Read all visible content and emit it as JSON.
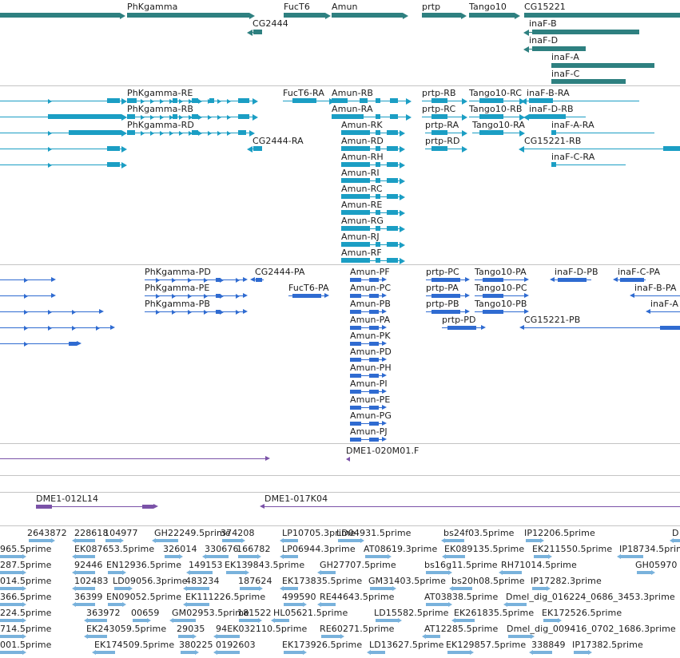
{
  "colors": {
    "gene": "#2e8080",
    "transcript": "#1b9ec4",
    "protein": "#2f6bd1",
    "clone": "#7b52a8",
    "est": "#79b2dc",
    "separator": "#c4c4c4"
  },
  "tracks": {
    "genes": {
      "items": [
        {
          "label": "PhKgamma"
        },
        {
          "label": "FucT6"
        },
        {
          "label": "Amun"
        },
        {
          "label": "prtp"
        },
        {
          "label": "Tango10"
        },
        {
          "label": "CG15221"
        },
        {
          "label": "CG2444"
        },
        {
          "label": "inaF-B"
        },
        {
          "label": "inaF-D"
        },
        {
          "label": "inaF-A"
        },
        {
          "label": "inaF-C"
        }
      ]
    },
    "transcripts": {
      "items": [
        {
          "label": "PhKgamma-RE"
        },
        {
          "label": "PhKgamma-RB"
        },
        {
          "label": "PhKgamma-RD"
        },
        {
          "label": "FucT6-RA"
        },
        {
          "label": "Amun-RB"
        },
        {
          "label": "Amun-RA"
        },
        {
          "label": "Amun-RK"
        },
        {
          "label": "Amun-RD"
        },
        {
          "label": "Amun-RH"
        },
        {
          "label": "Amun-RI"
        },
        {
          "label": "Amun-RC"
        },
        {
          "label": "Amun-RE"
        },
        {
          "label": "Amun-RG"
        },
        {
          "label": "Amun-RJ"
        },
        {
          "label": "Amun-RF"
        },
        {
          "label": "prtp-RB"
        },
        {
          "label": "prtp-RC"
        },
        {
          "label": "prtp-RA"
        },
        {
          "label": "prtp-RD"
        },
        {
          "label": "Tango10-RC"
        },
        {
          "label": "Tango10-RB"
        },
        {
          "label": "Tango10-RA"
        },
        {
          "label": "inaF-B-RA"
        },
        {
          "label": "inaF-D-RB"
        },
        {
          "label": "inaF-A-RA"
        },
        {
          "label": "CG15221-RB"
        },
        {
          "label": "inaF-C-RA"
        },
        {
          "label": "CG2444-RA"
        }
      ]
    },
    "proteins": {
      "items": [
        {
          "label": "PhKgamma-PD"
        },
        {
          "label": "PhKgamma-PE"
        },
        {
          "label": "PhKgamma-PB"
        },
        {
          "label": "CG2444-PA"
        },
        {
          "label": "FucT6-PA"
        },
        {
          "label": "Amun-PF"
        },
        {
          "label": "Amun-PC"
        },
        {
          "label": "Amun-PB"
        },
        {
          "label": "Amun-PA"
        },
        {
          "label": "Amun-PK"
        },
        {
          "label": "Amun-PD"
        },
        {
          "label": "Amun-PH"
        },
        {
          "label": "Amun-PI"
        },
        {
          "label": "Amun-PE"
        },
        {
          "label": "Amun-PG"
        },
        {
          "label": "Amun-PJ"
        },
        {
          "label": "prtp-PC"
        },
        {
          "label": "prtp-PA"
        },
        {
          "label": "prtp-PB"
        },
        {
          "label": "prtp-PD"
        },
        {
          "label": "Tango10-PA"
        },
        {
          "label": "Tango10-PC"
        },
        {
          "label": "Tango10-PB"
        },
        {
          "label": "inaF-D-PB"
        },
        {
          "label": "inaF-C-PA"
        },
        {
          "label": "inaF-B-PA"
        },
        {
          "label": "inaF-A"
        },
        {
          "label": "CG15221-PB"
        }
      ]
    },
    "clones_a": {
      "items": [
        {
          "label": "DME1-020M01.F"
        }
      ]
    },
    "clones_b": {
      "items": [
        {
          "label": "DME1-012L14"
        },
        {
          "label": "DME1-017K04"
        }
      ]
    },
    "ests": {
      "items": [
        {
          "label": "2643872"
        },
        {
          "label": "228618"
        },
        {
          "label": "104977"
        },
        {
          "label": "GH22249.5prime"
        },
        {
          "label": "374208"
        },
        {
          "label": "LP10705.3prime"
        },
        {
          "label": "LD04931.5prime"
        },
        {
          "label": "bs24f03.5prime"
        },
        {
          "label": "IP12206.5prime"
        },
        {
          "label": "D"
        },
        {
          "label": "965.5prime"
        },
        {
          "label": "EK087653.5prime"
        },
        {
          "label": "326014"
        },
        {
          "label": "330676"
        },
        {
          "label": "166782"
        },
        {
          "label": "LP06944.3prime"
        },
        {
          "label": "AT08619.3prime"
        },
        {
          "label": "EK089135.5prime"
        },
        {
          "label": "EK211550.5prime"
        },
        {
          "label": "IP18734.5prime"
        },
        {
          "label": "287.5prime"
        },
        {
          "label": "92446"
        },
        {
          "label": "EN12936.5prime"
        },
        {
          "label": "149153"
        },
        {
          "label": "EK139843.5prime"
        },
        {
          "label": "GH27707.5prime"
        },
        {
          "label": "bs16g11.5prime"
        },
        {
          "label": "RH71014.5prime"
        },
        {
          "label": "GH05970"
        },
        {
          "label": "014.5prime"
        },
        {
          "label": "102483"
        },
        {
          "label": "LD09056.3prime"
        },
        {
          "label": "483234"
        },
        {
          "label": "187624"
        },
        {
          "label": "EK173835.5prime"
        },
        {
          "label": "GM31403.5prime"
        },
        {
          "label": "bs20h08.5prime"
        },
        {
          "label": "IP17282.3prime"
        },
        {
          "label": "366.5prime"
        },
        {
          "label": "36399"
        },
        {
          "label": "EN09052.5prime"
        },
        {
          "label": "EK111226.5prime"
        },
        {
          "label": "499590"
        },
        {
          "label": "RE44643.5prime"
        },
        {
          "label": "AT03838.5prime"
        },
        {
          "label": "Dmel_dig_016224_0686_3453.3prime"
        },
        {
          "label": "224.5prime"
        },
        {
          "label": "363972"
        },
        {
          "label": "00659"
        },
        {
          "label": "GM02953.5prime"
        },
        {
          "label": "181522"
        },
        {
          "label": "HL05621.5prime"
        },
        {
          "label": "LD15582.5prime"
        },
        {
          "label": "EK261835.5prime"
        },
        {
          "label": "EK172526.5prime"
        },
        {
          "label": "714.5prime"
        },
        {
          "label": "EK243059.5prime"
        },
        {
          "label": "29035"
        },
        {
          "label": "94EK032110.5prime"
        },
        {
          "label": "RE60271.5prime"
        },
        {
          "label": "AT12285.5prime"
        },
        {
          "label": "Dmel_dig_009416_0702_1686.3prime"
        },
        {
          "label": "001.5prime"
        },
        {
          "label": "EK174509.5prime"
        },
        {
          "label": "380225"
        },
        {
          "label": "0192603"
        },
        {
          "label": "EK173926.5prime"
        },
        {
          "label": "LD13627.5prime"
        },
        {
          "label": "EK129857.5prime"
        },
        {
          "label": "338849"
        },
        {
          "label": "IP17382.5prime"
        }
      ]
    }
  }
}
